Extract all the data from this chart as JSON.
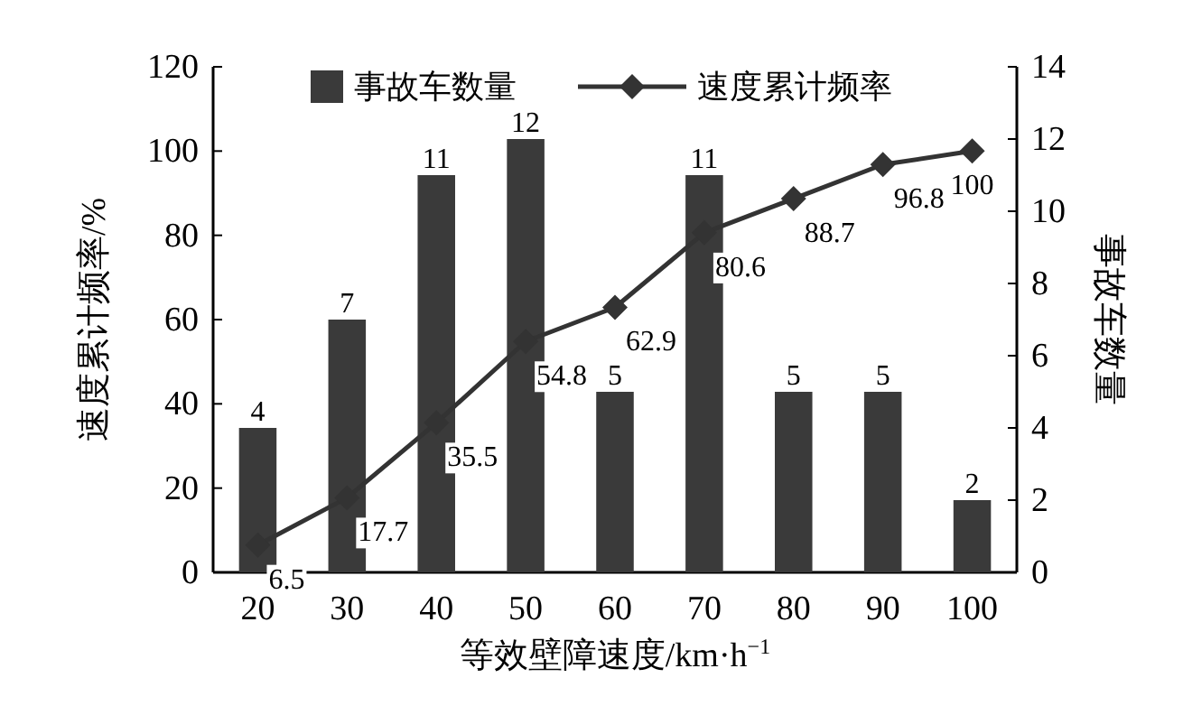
{
  "chart_data": {
    "type": "bar",
    "xlabel": "等效壁障速度/km·h$^{−1}$",
    "ylabel": "速度累计频率/%",
    "y2label": "事故车数量",
    "categories": [
      "20",
      "30",
      "40",
      "50",
      "60",
      "70",
      "80",
      "90",
      "100"
    ],
    "series": [
      {
        "name": "事故车数量",
        "axis": "y2",
        "color": "#3a3a3a",
        "values": [
          4,
          7,
          11,
          12,
          5,
          11,
          5,
          5,
          2
        ]
      },
      {
        "name": "速度累计频率",
        "type": "line",
        "axis": "y",
        "color": "#333333",
        "marker": "diamond",
        "values": [
          6.5,
          17.7,
          35.5,
          54.8,
          62.9,
          80.6,
          88.7,
          96.8,
          100
        ]
      }
    ],
    "ylim": [
      0,
      120
    ],
    "yticks": [
      0,
      20,
      40,
      60,
      80,
      100,
      120
    ],
    "y2lim": [
      0,
      14
    ],
    "y2ticks": [
      0,
      2,
      4,
      6,
      8,
      10,
      12,
      14
    ],
    "data_labels": true,
    "legend": "top",
    "grid": false
  }
}
